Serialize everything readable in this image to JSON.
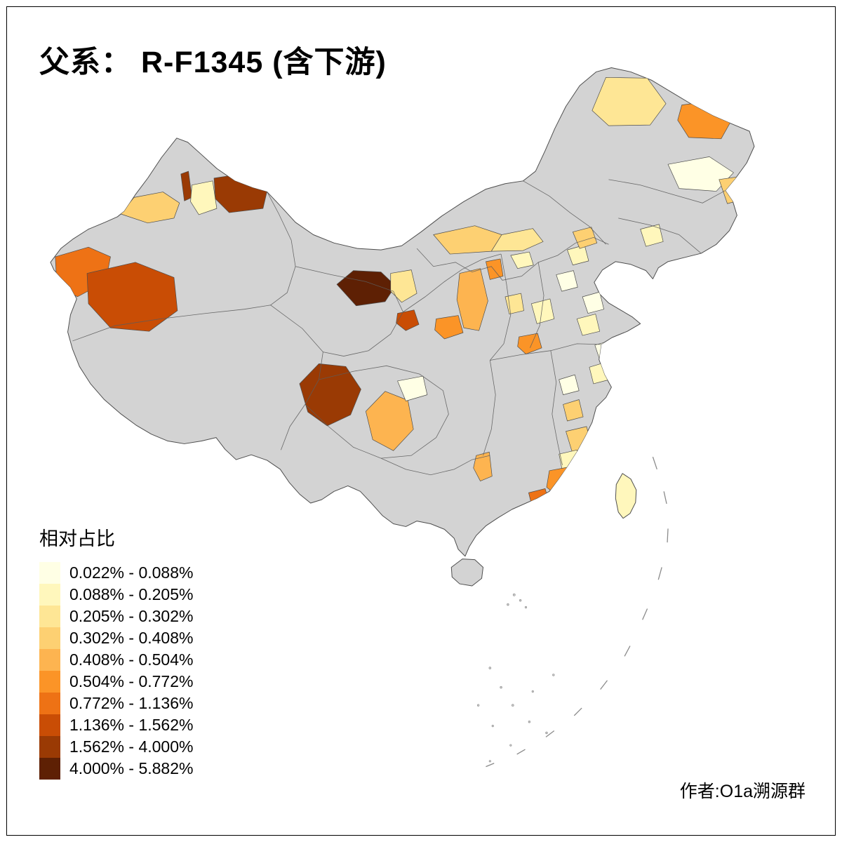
{
  "title": "父系： R-F1345 (含下游)",
  "legend": {
    "title": "相对占比",
    "items": [
      {
        "label": "0.022% - 0.088%",
        "color": "#FFFFE5"
      },
      {
        "label": "0.088% - 0.205%",
        "color": "#FFF7BC"
      },
      {
        "label": "0.205% - 0.302%",
        "color": "#FEE695"
      },
      {
        "label": "0.302% - 0.408%",
        "color": "#FDD072"
      },
      {
        "label": "0.408% - 0.504%",
        "color": "#FDB450"
      },
      {
        "label": "0.504% - 0.772%",
        "color": "#FB9427"
      },
      {
        "label": "0.772% - 1.136%",
        "color": "#EE7215"
      },
      {
        "label": "1.136% - 1.562%",
        "color": "#C94D05"
      },
      {
        "label": "1.562% - 4.000%",
        "color": "#9A3A04"
      },
      {
        "label": "4.000% - 5.882%",
        "color": "#5E2004"
      }
    ]
  },
  "author": "作者:O1a溯源群",
  "map": {
    "land_color": "#D3D3D3",
    "border_color": "#4D4D4D",
    "sea_mark_color": "#8A8A8A"
  }
}
